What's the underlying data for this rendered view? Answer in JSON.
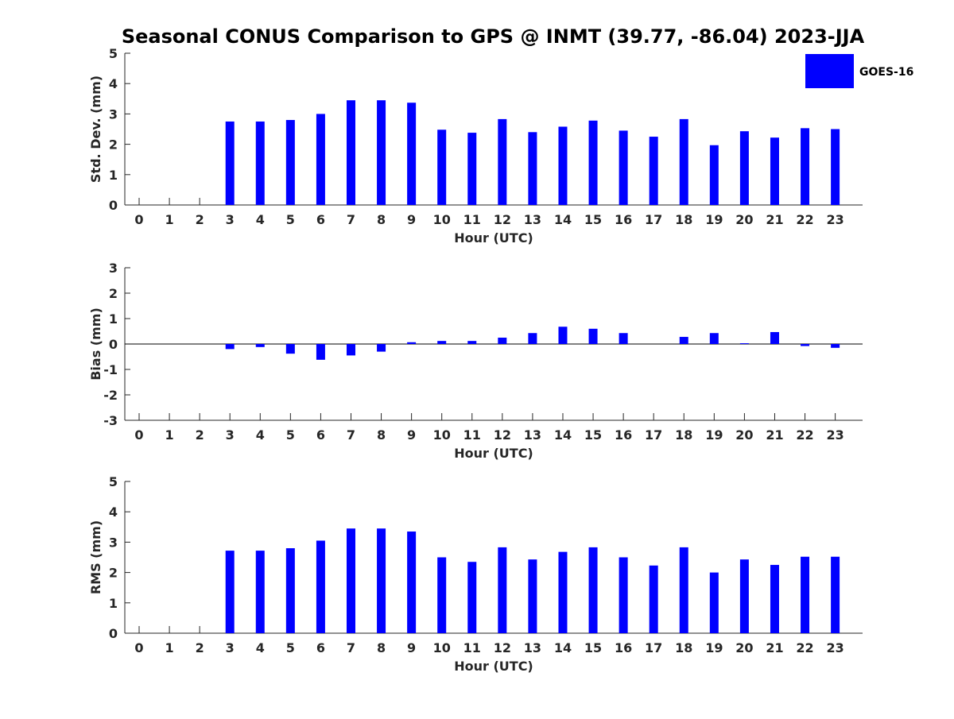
{
  "title": "Seasonal CONUS Comparison to GPS @ INMT (39.77, -86.04) 2023-JJA",
  "legend": {
    "label": "GOES-16",
    "color": "#0000FF"
  },
  "chart_data": [
    {
      "type": "bar",
      "xlabel": "Hour (UTC)",
      "ylabel": "Std. Dev. (mm)",
      "ylim": [
        0,
        5
      ],
      "yticks": [
        0,
        1,
        2,
        3,
        4,
        5
      ],
      "categories": [
        "0",
        "1",
        "2",
        "3",
        "4",
        "5",
        "6",
        "7",
        "8",
        "9",
        "10",
        "11",
        "12",
        "13",
        "14",
        "15",
        "16",
        "17",
        "18",
        "19",
        "20",
        "21",
        "22",
        "23"
      ],
      "series": [
        {
          "name": "GOES-16",
          "color": "#0000FF",
          "values": [
            null,
            null,
            null,
            2.75,
            2.75,
            2.8,
            3.0,
            3.45,
            3.45,
            3.37,
            2.48,
            2.38,
            2.83,
            2.4,
            2.58,
            2.78,
            2.45,
            2.25,
            2.83,
            1.97,
            2.43,
            2.22,
            2.53,
            2.5
          ]
        }
      ]
    },
    {
      "type": "bar",
      "xlabel": "Hour (UTC)",
      "ylabel": "Bias (mm)",
      "ylim": [
        -3,
        3
      ],
      "yticks": [
        -3,
        -2,
        -1,
        0,
        1,
        2,
        3
      ],
      "categories": [
        "0",
        "1",
        "2",
        "3",
        "4",
        "5",
        "6",
        "7",
        "8",
        "9",
        "10",
        "11",
        "12",
        "13",
        "14",
        "15",
        "16",
        "17",
        "18",
        "19",
        "20",
        "21",
        "22",
        "23"
      ],
      "series": [
        {
          "name": "GOES-16",
          "color": "#0000FF",
          "values": [
            null,
            null,
            null,
            -0.2,
            -0.12,
            -0.38,
            -0.62,
            -0.45,
            -0.3,
            0.07,
            0.12,
            0.12,
            0.25,
            0.43,
            0.68,
            0.6,
            0.43,
            null,
            0.28,
            0.43,
            0.03,
            0.47,
            -0.08,
            -0.15
          ]
        }
      ]
    },
    {
      "type": "bar",
      "xlabel": "Hour (UTC)",
      "ylabel": "RMS (mm)",
      "ylim": [
        0,
        5
      ],
      "yticks": [
        0,
        1,
        2,
        3,
        4,
        5
      ],
      "categories": [
        "0",
        "1",
        "2",
        "3",
        "4",
        "5",
        "6",
        "7",
        "8",
        "9",
        "10",
        "11",
        "12",
        "13",
        "14",
        "15",
        "16",
        "17",
        "18",
        "19",
        "20",
        "21",
        "22",
        "23"
      ],
      "series": [
        {
          "name": "GOES-16",
          "color": "#0000FF",
          "values": [
            null,
            null,
            null,
            2.72,
            2.72,
            2.8,
            3.05,
            3.45,
            3.45,
            3.35,
            2.5,
            2.35,
            2.83,
            2.43,
            2.68,
            2.83,
            2.5,
            2.23,
            2.83,
            2.0,
            2.43,
            2.25,
            2.52,
            2.52
          ]
        }
      ]
    }
  ]
}
